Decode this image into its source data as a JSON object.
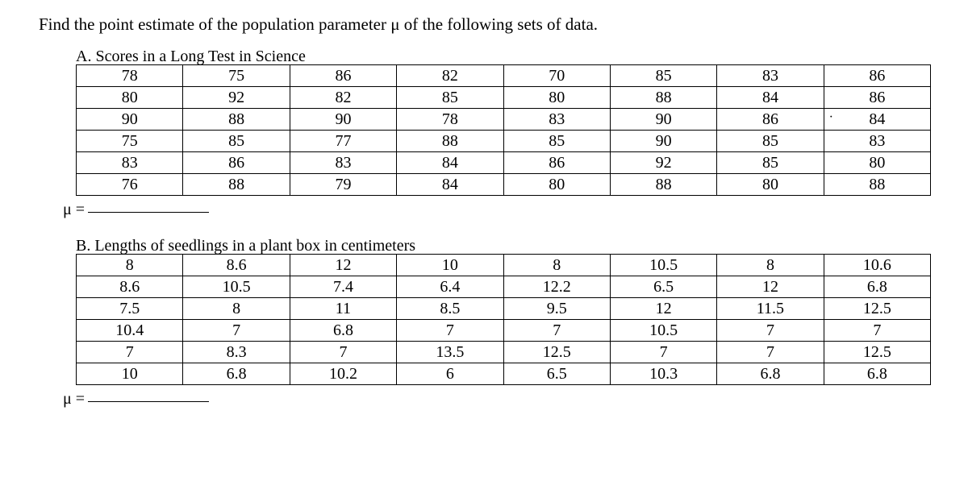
{
  "intro": "Find the point estimate of the population parameter μ of the following sets of data.",
  "sectionA": {
    "label": "A.  Scores in a Long Test in Science",
    "rows": [
      [
        "78",
        "75",
        "86",
        "82",
        "70",
        "85",
        "83",
        "86"
      ],
      [
        "80",
        "92",
        "82",
        "85",
        "80",
        "88",
        "84",
        "86"
      ],
      [
        "90",
        "88",
        "90",
        "78",
        "83",
        "90",
        "86",
        "84"
      ],
      [
        "75",
        "85",
        "77",
        "88",
        "85",
        "90",
        "85",
        "83"
      ],
      [
        "83",
        "86",
        "83",
        "84",
        "86",
        "92",
        "85",
        "80"
      ],
      [
        "76",
        "88",
        "79",
        "84",
        "80",
        "88",
        "80",
        "88"
      ]
    ],
    "dot_cell": {
      "row": 2,
      "col": 7
    }
  },
  "sectionB": {
    "label": "B.  Lengths of seedlings in a plant box in centimeters",
    "rows": [
      [
        "8",
        "8.6",
        "12",
        "10",
        "8",
        "10.5",
        "8",
        "10.6"
      ],
      [
        "8.6",
        "10.5",
        "7.4",
        "6.4",
        "12.2",
        "6.5",
        "12",
        "6.8"
      ],
      [
        "7.5",
        "8",
        "11",
        "8.5",
        "9.5",
        "12",
        "11.5",
        "12.5"
      ],
      [
        "10.4",
        "7",
        "6.8",
        "7",
        "7",
        "10.5",
        "7",
        "7"
      ],
      [
        "7",
        "8.3",
        "7",
        "13.5",
        "12.5",
        "7",
        "7",
        "12.5"
      ],
      [
        "10",
        "6.8",
        "10.2",
        "6",
        "6.5",
        "10.3",
        "6.8",
        "6.8"
      ]
    ]
  },
  "mu_label": "μ ="
}
